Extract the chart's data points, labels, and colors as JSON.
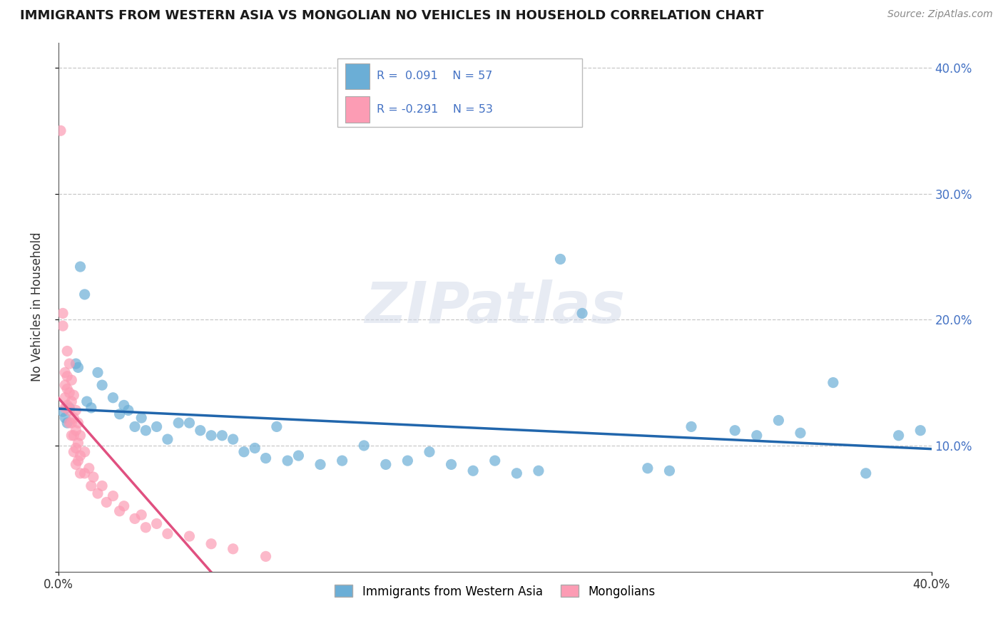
{
  "title": "IMMIGRANTS FROM WESTERN ASIA VS MONGOLIAN NO VEHICLES IN HOUSEHOLD CORRELATION CHART",
  "source": "Source: ZipAtlas.com",
  "ylabel": "No Vehicles in Household",
  "xlim": [
    0.0,
    0.4
  ],
  "ylim": [
    0.0,
    0.42
  ],
  "blue_color": "#6baed6",
  "pink_color": "#fc9cb4",
  "blue_line_color": "#2166ac",
  "pink_line_color": "#e05080",
  "watermark": "ZIPatlas",
  "background_color": "#ffffff",
  "grid_color": "#c8c8c8",
  "blue_scatter": [
    [
      0.002,
      0.127
    ],
    [
      0.003,
      0.122
    ],
    [
      0.004,
      0.118
    ],
    [
      0.005,
      0.13
    ],
    [
      0.008,
      0.165
    ],
    [
      0.009,
      0.162
    ],
    [
      0.01,
      0.242
    ],
    [
      0.012,
      0.22
    ],
    [
      0.013,
      0.135
    ],
    [
      0.015,
      0.13
    ],
    [
      0.018,
      0.158
    ],
    [
      0.02,
      0.148
    ],
    [
      0.025,
      0.138
    ],
    [
      0.028,
      0.125
    ],
    [
      0.03,
      0.132
    ],
    [
      0.032,
      0.128
    ],
    [
      0.035,
      0.115
    ],
    [
      0.038,
      0.122
    ],
    [
      0.04,
      0.112
    ],
    [
      0.045,
      0.115
    ],
    [
      0.05,
      0.105
    ],
    [
      0.055,
      0.118
    ],
    [
      0.06,
      0.118
    ],
    [
      0.065,
      0.112
    ],
    [
      0.07,
      0.108
    ],
    [
      0.075,
      0.108
    ],
    [
      0.08,
      0.105
    ],
    [
      0.085,
      0.095
    ],
    [
      0.09,
      0.098
    ],
    [
      0.095,
      0.09
    ],
    [
      0.1,
      0.115
    ],
    [
      0.105,
      0.088
    ],
    [
      0.11,
      0.092
    ],
    [
      0.12,
      0.085
    ],
    [
      0.13,
      0.088
    ],
    [
      0.14,
      0.1
    ],
    [
      0.15,
      0.085
    ],
    [
      0.16,
      0.088
    ],
    [
      0.17,
      0.095
    ],
    [
      0.18,
      0.085
    ],
    [
      0.19,
      0.08
    ],
    [
      0.2,
      0.088
    ],
    [
      0.21,
      0.078
    ],
    [
      0.22,
      0.08
    ],
    [
      0.23,
      0.248
    ],
    [
      0.24,
      0.205
    ],
    [
      0.27,
      0.082
    ],
    [
      0.28,
      0.08
    ],
    [
      0.29,
      0.115
    ],
    [
      0.31,
      0.112
    ],
    [
      0.32,
      0.108
    ],
    [
      0.33,
      0.12
    ],
    [
      0.34,
      0.11
    ],
    [
      0.355,
      0.15
    ],
    [
      0.37,
      0.078
    ],
    [
      0.385,
      0.108
    ],
    [
      0.395,
      0.112
    ]
  ],
  "pink_scatter": [
    [
      0.001,
      0.35
    ],
    [
      0.002,
      0.205
    ],
    [
      0.002,
      0.195
    ],
    [
      0.003,
      0.158
    ],
    [
      0.003,
      0.148
    ],
    [
      0.003,
      0.138
    ],
    [
      0.003,
      0.13
    ],
    [
      0.004,
      0.175
    ],
    [
      0.004,
      0.155
    ],
    [
      0.004,
      0.145
    ],
    [
      0.004,
      0.132
    ],
    [
      0.005,
      0.165
    ],
    [
      0.005,
      0.142
    ],
    [
      0.005,
      0.128
    ],
    [
      0.005,
      0.118
    ],
    [
      0.006,
      0.152
    ],
    [
      0.006,
      0.135
    ],
    [
      0.006,
      0.118
    ],
    [
      0.006,
      0.108
    ],
    [
      0.007,
      0.14
    ],
    [
      0.007,
      0.122
    ],
    [
      0.007,
      0.108
    ],
    [
      0.007,
      0.095
    ],
    [
      0.008,
      0.128
    ],
    [
      0.008,
      0.112
    ],
    [
      0.008,
      0.098
    ],
    [
      0.008,
      0.085
    ],
    [
      0.009,
      0.118
    ],
    [
      0.009,
      0.102
    ],
    [
      0.009,
      0.088
    ],
    [
      0.01,
      0.108
    ],
    [
      0.01,
      0.092
    ],
    [
      0.01,
      0.078
    ],
    [
      0.012,
      0.095
    ],
    [
      0.012,
      0.078
    ],
    [
      0.014,
      0.082
    ],
    [
      0.015,
      0.068
    ],
    [
      0.016,
      0.075
    ],
    [
      0.018,
      0.062
    ],
    [
      0.02,
      0.068
    ],
    [
      0.022,
      0.055
    ],
    [
      0.025,
      0.06
    ],
    [
      0.028,
      0.048
    ],
    [
      0.03,
      0.052
    ],
    [
      0.035,
      0.042
    ],
    [
      0.038,
      0.045
    ],
    [
      0.04,
      0.035
    ],
    [
      0.045,
      0.038
    ],
    [
      0.05,
      0.03
    ],
    [
      0.06,
      0.028
    ],
    [
      0.07,
      0.022
    ],
    [
      0.08,
      0.018
    ],
    [
      0.095,
      0.012
    ]
  ]
}
